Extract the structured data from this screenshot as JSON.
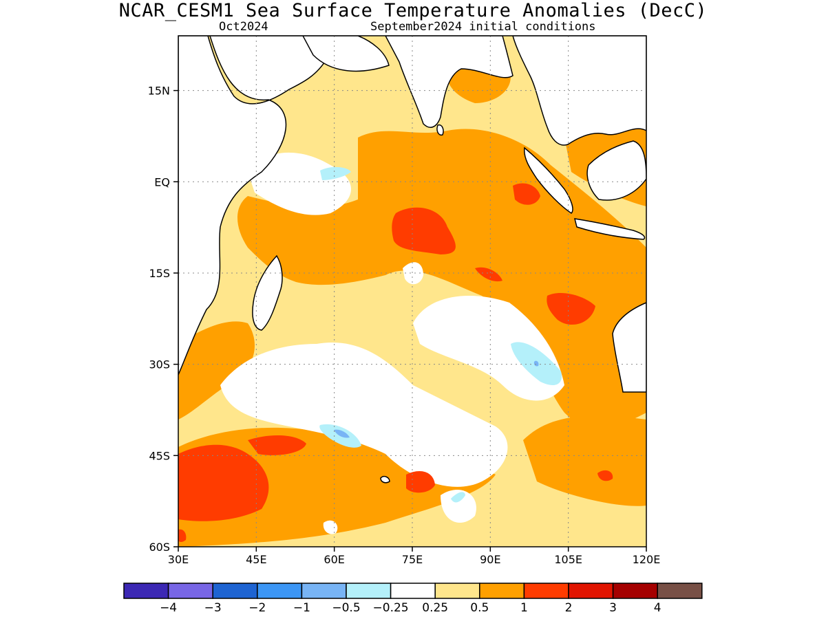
{
  "title": "NCAR_CESM1 Sea Surface Temperature Anomalies (DecC)",
  "subtitle_left": "Oct2024",
  "subtitle_right": "September2024 initial conditions",
  "map": {
    "lon_range": [
      30,
      120
    ],
    "lat_range": [
      -60,
      24
    ],
    "lat_ticks": [
      {
        "value": 15,
        "label": "15N"
      },
      {
        "value": 0,
        "label": "EQ"
      },
      {
        "value": -15,
        "label": "15S"
      },
      {
        "value": -30,
        "label": "30S"
      },
      {
        "value": -45,
        "label": "45S"
      },
      {
        "value": -60,
        "label": "60S"
      }
    ],
    "lon_ticks": [
      {
        "value": 30,
        "label": "30E"
      },
      {
        "value": 45,
        "label": "45E"
      },
      {
        "value": 60,
        "label": "60E"
      },
      {
        "value": 75,
        "label": "75E"
      },
      {
        "value": 90,
        "label": "90E"
      },
      {
        "value": 105,
        "label": "105E"
      },
      {
        "value": 120,
        "label": "120E"
      }
    ],
    "grid": "dotted"
  },
  "colorbar": {
    "colors": [
      "#3c28b4",
      "#7866e6",
      "#1e64d2",
      "#3c96f5",
      "#78b4f5",
      "#b4f0fa",
      "#ffffff",
      "#ffe68c",
      "#ffa000",
      "#ff3c00",
      "#e11400",
      "#a50000",
      "#785046"
    ],
    "labels": [
      "−4",
      "−3",
      "−2",
      "−1",
      "−0.5",
      "−0.25",
      "0.25",
      "0.5",
      "1",
      "2",
      "3",
      "4"
    ]
  }
}
